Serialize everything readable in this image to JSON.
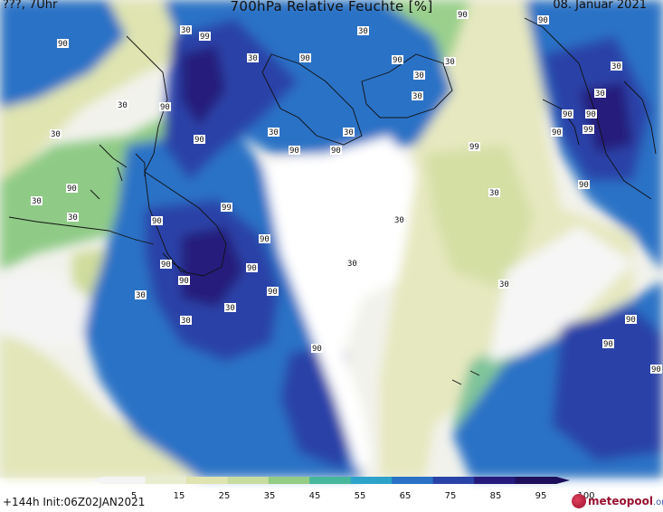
{
  "header": {
    "left": "???, 7Uhr",
    "title": "700hPa Relative Feuchte [%]",
    "date": "08. Januar 2021"
  },
  "footer": {
    "run": "+144h Init:06Z02JAN2021",
    "brand": "meteopool",
    "brand_domain": ".org"
  },
  "legend": {
    "ticks": [
      "5",
      "15",
      "25",
      "35",
      "45",
      "55",
      "65",
      "75",
      "85",
      "95",
      "100"
    ],
    "colors": [
      "#f4f4f4",
      "#e8edd0",
      "#dfe4b0",
      "#c9dca0",
      "#93cc84",
      "#46b79a",
      "#2da3c9",
      "#2a72c6",
      "#2a43a8",
      "#251a7c",
      "#1d0f5a"
    ]
  },
  "contour_labels": [
    "90",
    "30",
    "99",
    "30",
    "90",
    "30",
    "90",
    "90",
    "30",
    "30",
    "30",
    "30",
    "90",
    "30",
    "90",
    "30",
    "90",
    "30",
    "90",
    "99",
    "90",
    "90",
    "99",
    "90",
    "30",
    "90",
    "30",
    "90",
    "99",
    "90",
    "30",
    "30",
    "30",
    "30",
    "90",
    "90",
    "30",
    "90",
    "30",
    "90",
    "30",
    "90",
    "90",
    "30",
    "30",
    "90",
    "90",
    "90",
    "90"
  ]
}
